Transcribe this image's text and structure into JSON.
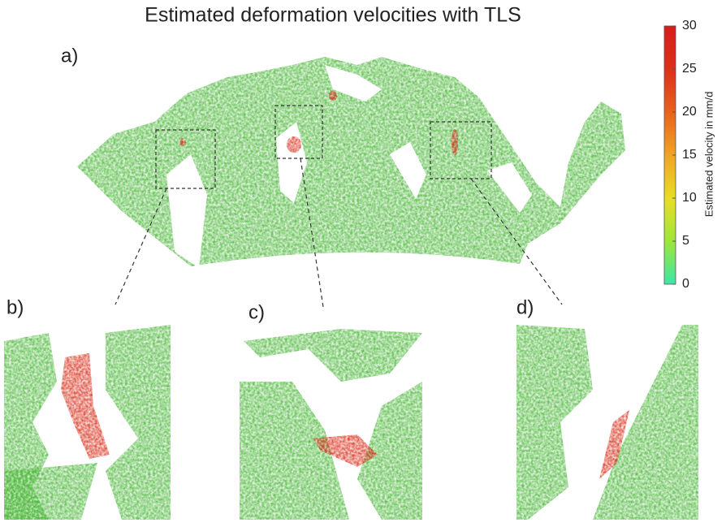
{
  "title": "Estimated deformation velocities with TLS",
  "panels": [
    {
      "label": "a)"
    },
    {
      "label": "b)"
    },
    {
      "label": "c)"
    },
    {
      "label": "d)"
    }
  ],
  "colorbar": {
    "label": "Estimated velocity in mm/d",
    "lim": [
      0,
      30
    ],
    "ticks": [
      0,
      5,
      10,
      15,
      20,
      25,
      30
    ],
    "colormap": [
      "#3de6a8",
      "#9ee63a",
      "#e9de22",
      "#f0a425",
      "#e8621c",
      "#df2e1a",
      "#d81c1c"
    ]
  }
}
